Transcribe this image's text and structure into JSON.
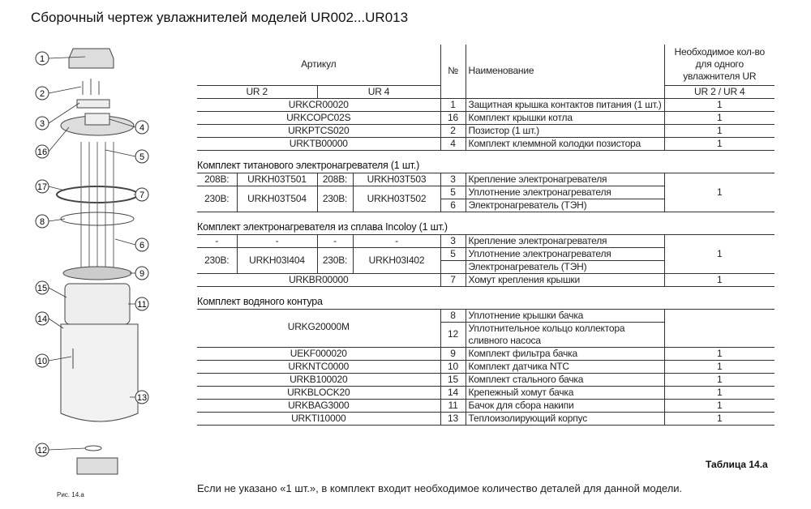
{
  "title": "Сборочный чертеж увлажнителей моделей UR002...UR013",
  "figure": {
    "caption": "Рис. 14.a",
    "callouts": [
      "1",
      "2",
      "3",
      "16",
      "4",
      "5",
      "17",
      "7",
      "8",
      "6",
      "9",
      "15",
      "11",
      "14",
      "10",
      "13",
      "12"
    ]
  },
  "header": {
    "article": "Артикул",
    "ur2": "UR 2",
    "ur4": "UR 4",
    "no": "№",
    "name": "Наименование",
    "qty": "Необходимое кол-во для одного увлажнителя UR",
    "qty_sub": "UR 2 / UR 4"
  },
  "rows": [
    {
      "article": "URKCR00020",
      "no": "1",
      "name": "Защитная крышка контактов питания (1 шт.)",
      "qty": "1"
    },
    {
      "article": "URKCOPC02S",
      "no": "16",
      "name": "Комплект крышки котла",
      "qty": "1"
    },
    {
      "article": "URKPTCS020",
      "no": "2",
      "name": "Позистор (1 шт.)",
      "qty": "1"
    },
    {
      "article": "URKTB00000",
      "no": "4",
      "name": "Комплект клеммной колодки позистора",
      "qty": "1"
    }
  ],
  "titanium": {
    "title": "Комплект титанового электронагревателя (1 шт.)",
    "v208a": "208В:",
    "c208a": "URKH03T501",
    "v208b": "208В:",
    "c208b": "URKH03T503",
    "v230a": "230В:",
    "c230a": "URKH03T504",
    "v230b": "230В:",
    "c230b": "URKH03T502",
    "items": [
      {
        "no": "3",
        "name": "Крепление электронагревателя"
      },
      {
        "no": "5",
        "name": "Уплотнение электронагревателя"
      },
      {
        "no": "6",
        "name": "Электронагреватель (ТЭН)"
      }
    ],
    "qty": "1"
  },
  "incoloy": {
    "title": "Комплект электронагревателя из сплава Incoloy (1 шт.)",
    "d1": "-",
    "d2": "-",
    "d3": "-",
    "d4": "-",
    "v230a": "230В:",
    "c230a": "URKH03I404",
    "v230b": "230В:",
    "c230b": "URKH03I402",
    "items": [
      {
        "no": "3",
        "name": "Крепление электронагревателя"
      },
      {
        "no": "5",
        "name": "Уплотнение электронагревателя"
      },
      {
        "no": "",
        "name": "Электронагреватель (ТЭН)"
      }
    ],
    "qty": "1"
  },
  "clamp": {
    "article": "URKBR00000",
    "no": "7",
    "name": "Хомут крепления крышки",
    "qty": "1"
  },
  "water": {
    "title": "Комплект водяного контура",
    "article": "URKG20000M",
    "items": [
      {
        "no": "8",
        "name": "Уплотнение крышки бачка"
      },
      {
        "no": "12",
        "name": "Уплотнительное кольцо коллектора сливного насоса"
      }
    ],
    "rows": [
      {
        "article": "UEKF000020",
        "no": "9",
        "name": "Комплект фильтра бачка",
        "qty": "1"
      },
      {
        "article": "URKNTC0000",
        "no": "10",
        "name": "Комплект датчика NTC",
        "qty": "1"
      },
      {
        "article": "URKB100020",
        "no": "15",
        "name": "Комплект стального бачка",
        "qty": "1"
      },
      {
        "article": "URKBLOCK20",
        "no": "14",
        "name": "Крепежный хомут бачка",
        "qty": "1"
      },
      {
        "article": "URKBAG3000",
        "no": "11",
        "name": "Бачок для сбора накипи",
        "qty": "1"
      },
      {
        "article": "URKTI10000",
        "no": "13",
        "name": "Теплоизолирующий корпус",
        "qty": "1"
      }
    ]
  },
  "table_caption": "Таблица 14.a",
  "note": "Если не указано «1 шт.», в комплект входит необходимое количество деталей для данной модели."
}
